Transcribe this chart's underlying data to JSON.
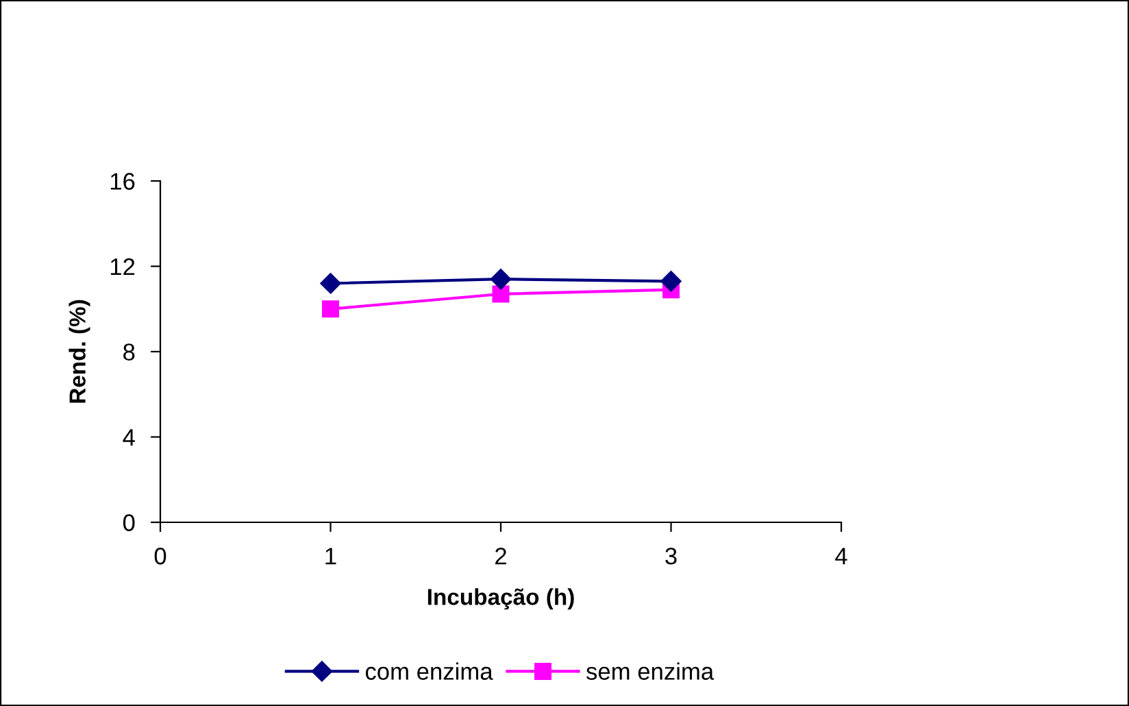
{
  "chart_data": {
    "type": "line",
    "xlabel": "Incubação (h)",
    "ylabel": "Rend. (%)",
    "x": [
      1,
      2,
      3
    ],
    "series": [
      {
        "name": "com enzima",
        "color": "#000080",
        "values": [
          11.2,
          11.4,
          11.3
        ],
        "marker": "diamond"
      },
      {
        "name": "sem enzima",
        "color": "#ff00ff",
        "values": [
          10.0,
          10.7,
          10.9
        ],
        "marker": "square"
      }
    ],
    "xlim": [
      0,
      4
    ],
    "xticks": [
      0,
      1,
      2,
      3,
      4
    ],
    "ylim": [
      0,
      16
    ],
    "yticks": [
      0,
      4,
      8,
      12,
      16
    ],
    "grid": false,
    "legend": "bottom",
    "line_style": "solid"
  }
}
